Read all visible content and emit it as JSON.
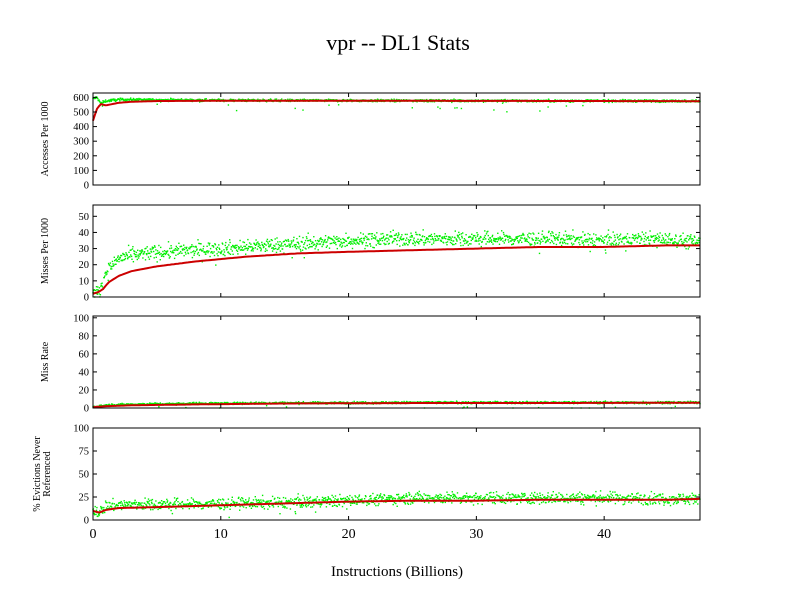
{
  "chart_data": {
    "type": "scatter",
    "title": "vpr -- DL1  Stats",
    "xlabel": "Instructions (Billions)",
    "xlim": [
      0,
      47.5
    ],
    "xticks": [
      0,
      10,
      20,
      30,
      40
    ],
    "colors": {
      "samples": "#00ee00",
      "cumulative": "#cc0000"
    },
    "panels": [
      {
        "id": "accesses",
        "ylabel": [
          "Accesses Per 1000"
        ],
        "ylim": [
          0,
          630
        ],
        "yticks": [
          0,
          100,
          200,
          300,
          400,
          500,
          600
        ],
        "series": [
          {
            "x": [
              0,
              0.3,
              0.6,
              1,
              2,
              3,
              5,
              10,
              20,
              30,
              40,
              47.5
            ],
            "y": [
              590,
              600,
              560,
              575,
              585,
              585,
              582,
              580,
              578,
              577,
              576,
              575
            ]
          },
          {
            "x": [
              0,
              0.3,
              0.6,
              1,
              2,
              3,
              5,
              10,
              20,
              30,
              40,
              47.5
            ],
            "y": [
              440,
              520,
              555,
              545,
              563,
              570,
              575,
              577,
              577,
              576,
              575,
              574
            ]
          }
        ]
      },
      {
        "id": "misses",
        "ylabel": [
          "Misses Per 1000"
        ],
        "ylim": [
          0,
          57
        ],
        "yticks": [
          0,
          10,
          20,
          30,
          40,
          50
        ],
        "series": [
          {
            "x": [
              0,
              0.5,
              1,
              2,
              4,
              8,
              12,
              16,
              20,
              24,
              28,
              32,
              36,
              40,
              44,
              47.5
            ],
            "y": [
              2,
              3,
              15,
              24,
              27,
              29,
              31,
              33,
              35,
              36,
              36,
              36,
              36,
              35,
              36,
              34
            ]
          },
          {
            "x": [
              0,
              0.4,
              0.8,
              1.2,
              2,
              3,
              5,
              8,
              12,
              16,
              20,
              25,
              30,
              35,
              40,
              45,
              47.5
            ],
            "y": [
              2,
              3,
              5,
              9,
              13,
              16,
              19,
              22,
              25,
              27,
              28,
              29,
              30,
              31,
              31,
              32,
              32
            ]
          }
        ]
      },
      {
        "id": "missrate",
        "ylabel": [
          "Miss Rate"
        ],
        "ylim": [
          0,
          102
        ],
        "yticks": [
          0,
          20,
          40,
          60,
          80,
          100
        ],
        "series": [
          {
            "x": [
              0,
              1,
              3,
              8,
              15,
              25,
              35,
              45,
              47.5
            ],
            "y": [
              1,
              3,
              4,
              5,
              5.5,
              6,
              6,
              6,
              6
            ]
          },
          {
            "x": [
              0,
              1,
              3,
              8,
              15,
              25,
              35,
              45,
              47.5
            ],
            "y": [
              1,
              2,
              3,
              4,
              5,
              5.5,
              5.5,
              5.8,
              5.8
            ]
          }
        ]
      },
      {
        "id": "evictions",
        "ylabel": [
          "% Evictions Never",
          "Referenced"
        ],
        "ylim": [
          0,
          100
        ],
        "yticks": [
          0,
          25,
          50,
          75,
          100
        ],
        "series": [
          {
            "x": [
              0,
              0.5,
              1,
              3,
              8,
              15,
              20,
              25,
              30,
              35,
              40,
              45,
              47.5
            ],
            "y": [
              12,
              8,
              15,
              17,
              17,
              19,
              21,
              24,
              24,
              24,
              24,
              23,
              23
            ]
          },
          {
            "x": [
              0,
              0.5,
              1,
              2,
              5,
              10,
              15,
              20,
              25,
              30,
              35,
              40,
              45,
              47.5
            ],
            "y": [
              10,
              8,
              11,
              13,
              14,
              16,
              18,
              20,
              21,
              21,
              22,
              22,
              22,
              23
            ]
          }
        ]
      }
    ]
  }
}
